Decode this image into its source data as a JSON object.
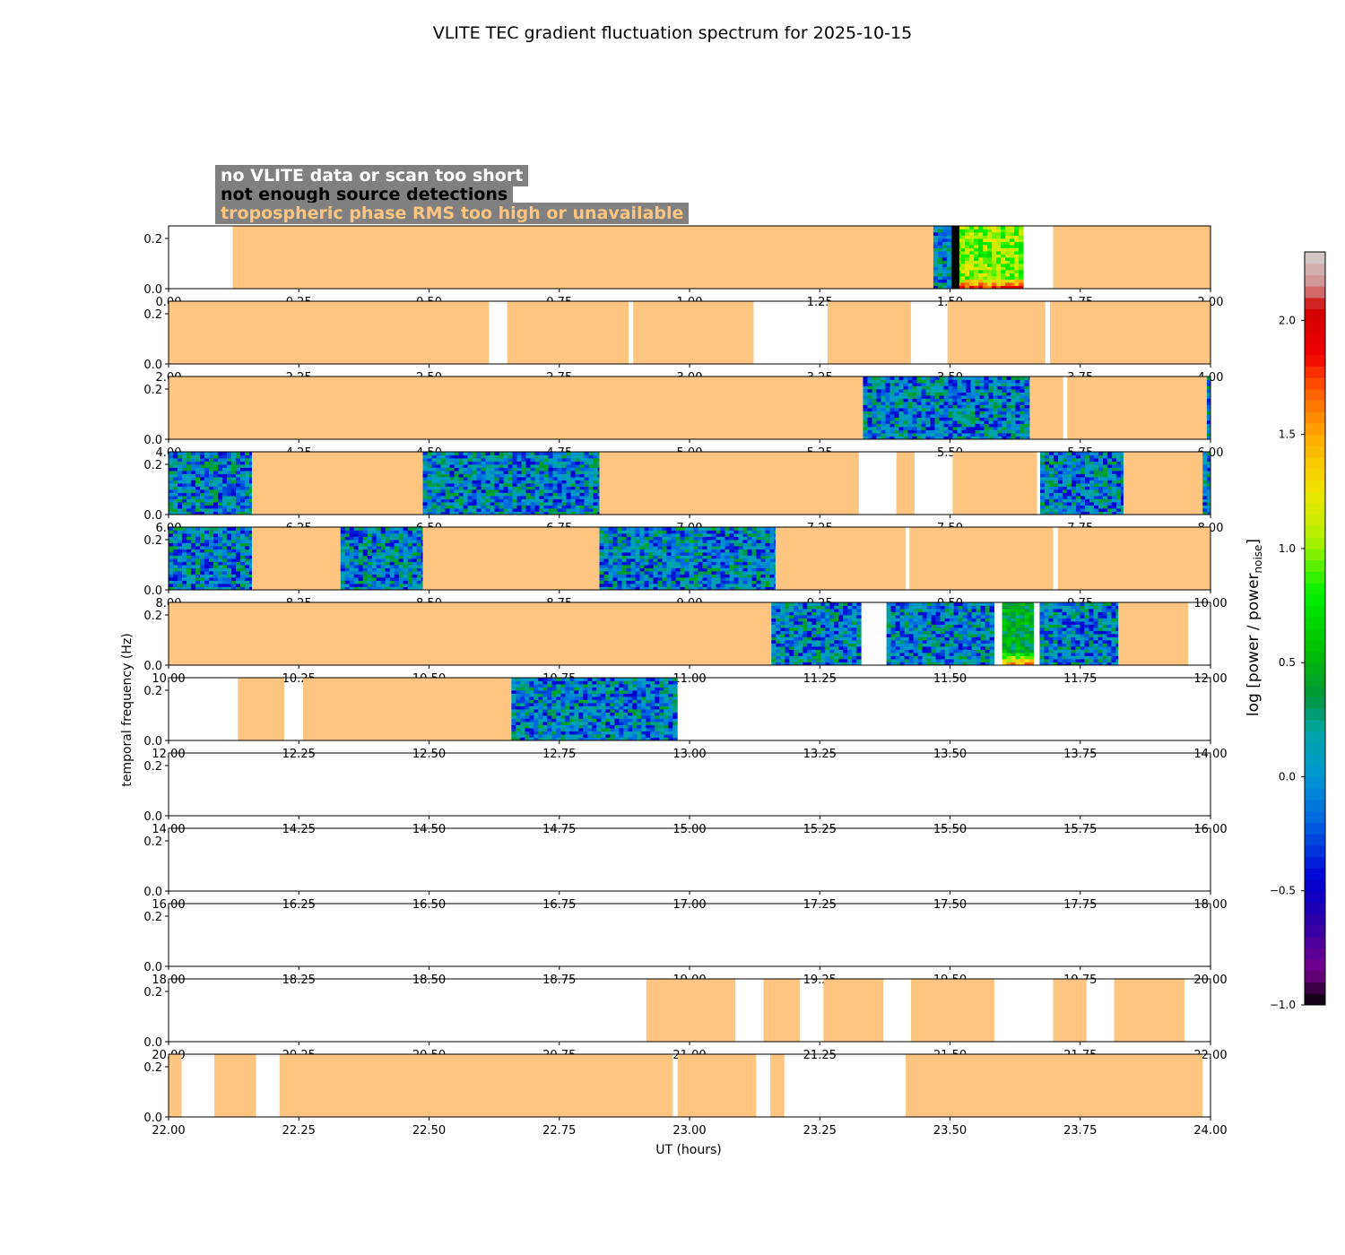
{
  "chart_data": {
    "type": "heatmap",
    "title": "VLITE TEC gradient fluctuation spectrum for 2025-10-15",
    "xlabel": "UT (hours)",
    "ylabel": "temporal frequency (Hz)",
    "ylim": [
      0,
      0.25
    ],
    "yticks": [
      0.0,
      0.2
    ],
    "colorbar": {
      "label": "log [power / power_noise]",
      "label_main": "log [power / power",
      "label_sub": "noise",
      "label_end": "]",
      "range": [
        -1.0,
        2.3
      ],
      "ticks": [
        -1.0,
        -0.5,
        0.0,
        0.5,
        1.0,
        1.5,
        2.0
      ]
    },
    "legend": [
      {
        "text": "no VLITE data or scan too short",
        "color": "#ffffff"
      },
      {
        "text": "not enough source detections",
        "color": "#000000"
      },
      {
        "text": "tropospheric phase RMS too high or unavailable",
        "color": "#fdc57f"
      }
    ],
    "colors": {
      "no_data": "#ffffff",
      "few_detections": "#000000",
      "high_rms": "#fdc57f",
      "legend_bg": "#808080"
    },
    "panels": [
      {
        "range": [
          0,
          2
        ],
        "xticks": [
          "0.00",
          "0.25",
          "0.50",
          "0.75",
          "1.00",
          "1.25",
          "1.50",
          "1.75",
          "2.00"
        ],
        "segments": [
          {
            "start": 0.123,
            "end": 1.468,
            "kind": "rms"
          },
          {
            "start": 1.468,
            "end": 1.503,
            "kind": "spectrum",
            "level": "low"
          },
          {
            "start": 1.503,
            "end": 1.518,
            "kind": "detect"
          },
          {
            "start": 1.518,
            "end": 1.52,
            "kind": "spectrum",
            "level": "high"
          },
          {
            "start": 1.52,
            "end": 1.636,
            "kind": "spectrum",
            "level": "high"
          },
          {
            "start": 1.698,
            "end": 2.0,
            "kind": "rms"
          }
        ]
      },
      {
        "range": [
          2,
          4
        ],
        "xticks": [
          "2.00",
          "2.25",
          "2.50",
          "2.75",
          "3.00",
          "3.25",
          "3.50",
          "3.75",
          "4.00"
        ],
        "segments": [
          {
            "start": 2.0,
            "end": 2.615,
            "kind": "rms"
          },
          {
            "start": 2.65,
            "end": 2.883,
            "kind": "rms"
          },
          {
            "start": 2.892,
            "end": 3.123,
            "kind": "rms"
          },
          {
            "start": 3.265,
            "end": 3.425,
            "kind": "rms"
          },
          {
            "start": 3.495,
            "end": 3.683,
            "kind": "rms"
          },
          {
            "start": 3.692,
            "end": 4.0,
            "kind": "rms"
          }
        ]
      },
      {
        "range": [
          4,
          6
        ],
        "xticks": [
          "4.00",
          "4.25",
          "4.50",
          "4.75",
          "5.00",
          "5.25",
          "5.50",
          "5.75",
          "6.00"
        ],
        "segments": [
          {
            "start": 4.0,
            "end": 5.333,
            "kind": "rms"
          },
          {
            "start": 5.333,
            "end": 5.653,
            "kind": "spectrum",
            "level": "low"
          },
          {
            "start": 5.653,
            "end": 5.717,
            "kind": "rms"
          },
          {
            "start": 5.725,
            "end": 5.993,
            "kind": "rms"
          },
          {
            "start": 5.993,
            "end": 6.0,
            "kind": "spectrum",
            "level": "low"
          }
        ]
      },
      {
        "range": [
          6,
          8
        ],
        "xticks": [
          "6.00",
          "6.25",
          "6.50",
          "6.75",
          "7.00",
          "7.25",
          "7.50",
          "7.75",
          "8.00"
        ],
        "segments": [
          {
            "start": 6.0,
            "end": 6.16,
            "kind": "spectrum",
            "level": "low"
          },
          {
            "start": 6.16,
            "end": 6.488,
            "kind": "rms"
          },
          {
            "start": 6.488,
            "end": 6.827,
            "kind": "spectrum",
            "level": "low"
          },
          {
            "start": 6.827,
            "end": 7.325,
            "kind": "rms"
          },
          {
            "start": 7.397,
            "end": 7.432,
            "kind": "rms"
          },
          {
            "start": 7.505,
            "end": 7.667,
            "kind": "rms"
          },
          {
            "start": 7.673,
            "end": 7.833,
            "kind": "spectrum",
            "level": "low"
          },
          {
            "start": 7.833,
            "end": 7.985,
            "kind": "rms"
          },
          {
            "start": 7.985,
            "end": 8.0,
            "kind": "spectrum",
            "level": "low"
          }
        ]
      },
      {
        "range": [
          8,
          10
        ],
        "xticks": [
          "8.00",
          "8.25",
          "8.50",
          "8.75",
          "9.00",
          "9.25",
          "9.50",
          "9.75",
          "10.00"
        ],
        "segments": [
          {
            "start": 8.0,
            "end": 8.16,
            "kind": "spectrum",
            "level": "low"
          },
          {
            "start": 8.16,
            "end": 8.33,
            "kind": "rms"
          },
          {
            "start": 8.33,
            "end": 8.488,
            "kind": "spectrum",
            "level": "low"
          },
          {
            "start": 8.488,
            "end": 8.827,
            "kind": "rms"
          },
          {
            "start": 8.827,
            "end": 9.165,
            "kind": "spectrum",
            "level": "low"
          },
          {
            "start": 9.165,
            "end": 9.415,
            "kind": "rms"
          },
          {
            "start": 9.422,
            "end": 9.698,
            "kind": "rms"
          },
          {
            "start": 9.707,
            "end": 10.0,
            "kind": "rms"
          }
        ]
      },
      {
        "range": [
          10,
          12
        ],
        "xticks": [
          "10.00",
          "10.25",
          "10.50",
          "10.75",
          "11.00",
          "11.25",
          "11.50",
          "11.75",
          "12.00"
        ],
        "segments": [
          {
            "start": 10.0,
            "end": 11.157,
            "kind": "rms"
          },
          {
            "start": 11.157,
            "end": 11.325,
            "kind": "spectrum",
            "level": "low"
          },
          {
            "start": 11.378,
            "end": 11.583,
            "kind": "spectrum",
            "level": "low"
          },
          {
            "start": 11.6,
            "end": 11.653,
            "kind": "spectrum",
            "level": "mid"
          },
          {
            "start": 11.672,
            "end": 11.823,
            "kind": "spectrum",
            "level": "low"
          },
          {
            "start": 11.823,
            "end": 11.957,
            "kind": "rms"
          }
        ]
      },
      {
        "range": [
          12,
          14
        ],
        "xticks": [
          "12.00",
          "12.25",
          "12.50",
          "12.75",
          "13.00",
          "13.25",
          "13.50",
          "13.75",
          "14.00"
        ],
        "segments": [
          {
            "start": 12.133,
            "end": 12.222,
            "kind": "rms"
          },
          {
            "start": 12.258,
            "end": 12.658,
            "kind": "rms"
          },
          {
            "start": 12.658,
            "end": 12.968,
            "kind": "spectrum",
            "level": "low"
          }
        ]
      },
      {
        "range": [
          14,
          16
        ],
        "xticks": [
          "14.00",
          "14.25",
          "14.50",
          "14.75",
          "15.00",
          "15.25",
          "15.50",
          "15.75",
          "16.00"
        ],
        "segments": []
      },
      {
        "range": [
          16,
          18
        ],
        "xticks": [
          "16.00",
          "16.25",
          "16.50",
          "16.75",
          "17.00",
          "17.25",
          "17.50",
          "17.75",
          "18.00"
        ],
        "segments": []
      },
      {
        "range": [
          18,
          20
        ],
        "xticks": [
          "18.00",
          "18.25",
          "18.50",
          "18.75",
          "19.00",
          "19.25",
          "19.50",
          "19.75",
          "20.00"
        ],
        "segments": []
      },
      {
        "range": [
          20,
          22
        ],
        "xticks": [
          "20.00",
          "20.25",
          "20.50",
          "20.75",
          "21.00",
          "21.25",
          "21.50",
          "21.75",
          "22.00"
        ],
        "segments": [
          {
            "start": 20.917,
            "end": 21.088,
            "kind": "rms"
          },
          {
            "start": 21.142,
            "end": 21.212,
            "kind": "rms"
          },
          {
            "start": 21.257,
            "end": 21.372,
            "kind": "rms"
          },
          {
            "start": 21.425,
            "end": 21.585,
            "kind": "rms"
          },
          {
            "start": 21.698,
            "end": 21.762,
            "kind": "rms"
          },
          {
            "start": 21.815,
            "end": 21.95,
            "kind": "rms"
          }
        ]
      },
      {
        "range": [
          22,
          24
        ],
        "xticks": [
          "22.00",
          "22.25",
          "22.50",
          "22.75",
          "23.00",
          "23.25",
          "23.50",
          "23.75",
          "24.00"
        ],
        "segments": [
          {
            "start": 22.0,
            "end": 22.025,
            "kind": "rms"
          },
          {
            "start": 22.088,
            "end": 22.168,
            "kind": "rms"
          },
          {
            "start": 22.213,
            "end": 22.968,
            "kind": "rms"
          },
          {
            "start": 22.977,
            "end": 23.128,
            "kind": "rms"
          },
          {
            "start": 23.155,
            "end": 23.182,
            "kind": "rms"
          },
          {
            "start": 23.415,
            "end": 23.985,
            "kind": "rms"
          }
        ]
      }
    ]
  }
}
